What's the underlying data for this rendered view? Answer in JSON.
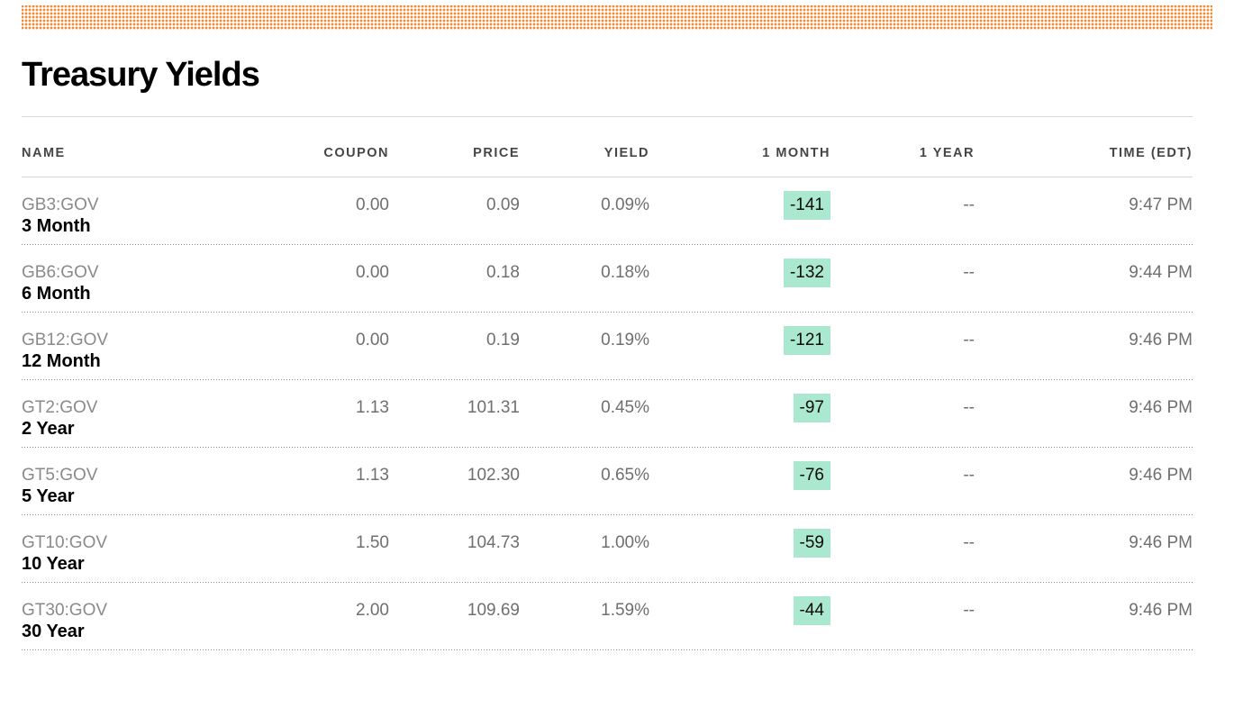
{
  "page": {
    "title": "Treasury Yields"
  },
  "colors": {
    "accent_orange": "#EC8C3C",
    "accent_orange_light": "#F8DCC0",
    "badge_green": "#ABE8D0",
    "header_text": "#454545",
    "value_text": "#6F6F6F",
    "ticker_text": "#8A8A8A",
    "name_text": "#000000",
    "rule_solid": "#D8D8D8",
    "rule_dotted": "#8C8C8C"
  },
  "table": {
    "columns": [
      "NAME",
      "COUPON",
      "PRICE",
      "YIELD",
      "1 MONTH",
      "1 YEAR",
      "TIME (EDT)"
    ],
    "rows": [
      {
        "ticker": "GB3:GOV",
        "name": "3 Month",
        "coupon": "0.00",
        "price": "0.09",
        "yield": "0.09%",
        "one_month": "-141",
        "one_year": "--",
        "time": "9:47 PM"
      },
      {
        "ticker": "GB6:GOV",
        "name": "6 Month",
        "coupon": "0.00",
        "price": "0.18",
        "yield": "0.18%",
        "one_month": "-132",
        "one_year": "--",
        "time": "9:44 PM"
      },
      {
        "ticker": "GB12:GOV",
        "name": "12 Month",
        "coupon": "0.00",
        "price": "0.19",
        "yield": "0.19%",
        "one_month": "-121",
        "one_year": "--",
        "time": "9:46 PM"
      },
      {
        "ticker": "GT2:GOV",
        "name": "2 Year",
        "coupon": "1.13",
        "price": "101.31",
        "yield": "0.45%",
        "one_month": "-97",
        "one_year": "--",
        "time": "9:46 PM"
      },
      {
        "ticker": "GT5:GOV",
        "name": "5 Year",
        "coupon": "1.13",
        "price": "102.30",
        "yield": "0.65%",
        "one_month": "-76",
        "one_year": "--",
        "time": "9:46 PM"
      },
      {
        "ticker": "GT10:GOV",
        "name": "10 Year",
        "coupon": "1.50",
        "price": "104.73",
        "yield": "1.00%",
        "one_month": "-59",
        "one_year": "--",
        "time": "9:46 PM"
      },
      {
        "ticker": "GT30:GOV",
        "name": "30 Year",
        "coupon": "2.00",
        "price": "109.69",
        "yield": "1.59%",
        "one_month": "-44",
        "one_year": "--",
        "time": "9:46 PM"
      }
    ]
  }
}
